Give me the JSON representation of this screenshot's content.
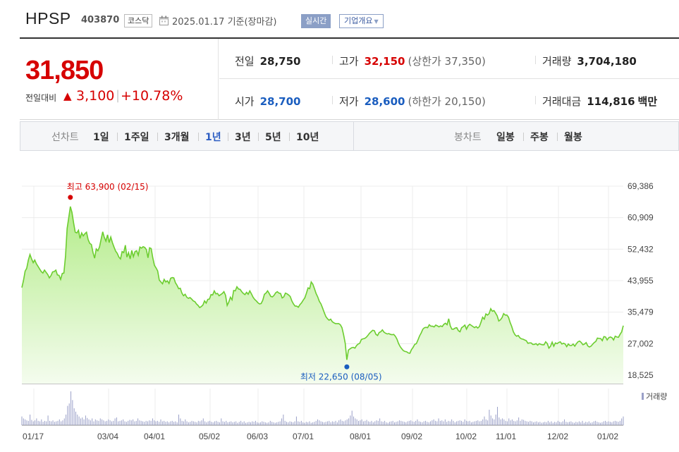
{
  "header": {
    "name": "HPSP",
    "code": "403870",
    "market": "코스닥",
    "date_text": "2025.01.17 기준(장마감)",
    "realtime_label": "실시간",
    "company_label": "기업개요"
  },
  "price": {
    "current": "31,850",
    "change_label": "전일대비",
    "change_arrow": "▲",
    "change_amount": "3,100",
    "change_rate": "+10.78%"
  },
  "stats": {
    "prev_close_label": "전일",
    "prev_close": "28,750",
    "high_label": "고가",
    "high": "32,150",
    "upper_limit_text": "(상한가 37,350)",
    "volume_label": "거래량",
    "volume": "3,704,180",
    "open_label": "시가",
    "open": "28,700",
    "low_label": "저가",
    "low": "28,600",
    "lower_limit_text": "(하한가 20,150)",
    "amount_label": "거래대금",
    "amount": "114,816",
    "amount_unit": "백만"
  },
  "period_bar": {
    "line_label": "선차트",
    "periods": [
      "1일",
      "1주일",
      "3개월",
      "1년",
      "3년",
      "5년",
      "10년"
    ],
    "active_period": "1년",
    "candle_label": "봉차트",
    "candles": [
      "일봉",
      "주봉",
      "월봉"
    ]
  },
  "chart_data": {
    "type": "area",
    "colors": {
      "line": "#6ccd2f",
      "fill_top": "#b4ec8a",
      "fill_bottom": "#f4fcee",
      "volume": "#9aa0c8",
      "high": "#d60000",
      "low": "#1a5dbf"
    },
    "y_ticks": [
      "69,386",
      "60,909",
      "52,432",
      "43,955",
      "35,479",
      "27,002",
      "18,525"
    ],
    "ylim": [
      18525,
      69386
    ],
    "x_tick_labels": [
      "01/17",
      "03/04",
      "04/01",
      "05/02",
      "06/03",
      "07/01",
      "08/01",
      "09/02",
      "10/02",
      "11/01",
      "12/02",
      "01/02"
    ],
    "annotations": {
      "high_text": "최고 63,900 (02/15)",
      "low_text": "최저 22,650 (08/05)"
    },
    "volume_legend": "거래량",
    "series": [
      {
        "values": [
          42100,
          44000,
          46500,
          47300,
          49500,
          51000,
          49800,
          48800,
          49500,
          48500,
          47800,
          47100,
          46400,
          46000,
          46800,
          46200,
          45600,
          44700,
          45300,
          46300,
          46400,
          46800,
          45500,
          45400,
          44300,
          45900,
          46000,
          50500,
          58000,
          60900,
          63900,
          62300,
          59500,
          57000,
          56800,
          57500,
          55300,
          56800,
          56000,
          56600,
          57000,
          55000,
          54000,
          53700,
          51500,
          50000,
          52500,
          52000,
          53000,
          55100,
          57100,
          55600,
          54600,
          56300,
          54200,
          55700,
          54200,
          53000,
          51900,
          51300,
          50300,
          49800,
          51800,
          51500,
          53500,
          50300,
          51500,
          49800,
          52100,
          50400,
          51800,
          52000,
          50800,
          53000,
          52700,
          53100,
          52900,
          52300,
          50100,
          52800,
          52600,
          50100,
          48100,
          47400,
          46600,
          44100,
          43600,
          43100,
          44300,
          43600,
          43900,
          43200,
          44600,
          44800,
          44700,
          43400,
          42700,
          41800,
          41900,
          40600,
          39900,
          40300,
          39500,
          39200,
          39400,
          39000,
          38500,
          38300,
          37700,
          37300,
          36700,
          37000,
          37400,
          38500,
          37900,
          38900,
          39000,
          40200,
          40100,
          41200,
          40400,
          40500,
          39900,
          40200,
          40500,
          41000,
          40000,
          37300,
          38200,
          39500,
          38800,
          41300,
          41200,
          42300,
          41700,
          41600,
          41000,
          40500,
          40200,
          40800,
          40300,
          41200,
          40400,
          39500,
          38900,
          38500,
          38000,
          37700,
          37800,
          38700,
          40300,
          40600,
          41200,
          40500,
          39700,
          39600,
          40000,
          40700,
          41000,
          40600,
          40500,
          39300,
          39600,
          40600,
          40400,
          40100,
          39700,
          38500,
          37700,
          37100,
          37100,
          36800,
          37500,
          38000,
          38700,
          39300,
          40600,
          42000,
          41800,
          43600,
          43000,
          41800,
          40500,
          39600,
          38400,
          37700,
          36600,
          35400,
          34300,
          33700,
          33300,
          33600,
          32900,
          32600,
          32400,
          32400,
          32400,
          32100,
          31300,
          29400,
          27100,
          22650,
          25300,
          25600,
          25900,
          26000,
          25800,
          26500,
          26900,
          27100,
          28100,
          28300,
          28400,
          28700,
          29200,
          29800,
          30200,
          30600,
          30500,
          29500,
          29200,
          30000,
          30200,
          30700,
          30100,
          29800,
          29600,
          29700,
          29500,
          29400,
          29500,
          29000,
          28200,
          27000,
          26200,
          25600,
          25100,
          24900,
          24800,
          24500,
          24400,
          25400,
          26000,
          26800,
          27000,
          28000,
          29100,
          29900,
          30900,
          31300,
          31400,
          31300,
          32100,
          31700,
          31700,
          31500,
          32000,
          31800,
          31500,
          31800,
          31600,
          32200,
          32500,
          32100,
          33700,
          31800,
          30900,
          30900,
          31200,
          31300,
          30500,
          30200,
          31300,
          31600,
          32000,
          30900,
          31800,
          32200,
          31900,
          31600,
          31300,
          31600,
          31200,
          31600,
          32800,
          34100,
          33600,
          35000,
          34700,
          35100,
          36400,
          35700,
          35900,
          35200,
          34500,
          33100,
          33400,
          34000,
          35100,
          34700,
          34700,
          34100,
          32700,
          31600,
          30200,
          29400,
          29000,
          29200,
          28600,
          28300,
          28200,
          28000,
          27800,
          27100,
          27200,
          27200,
          26800,
          26800,
          27000,
          26600,
          27000,
          26800,
          26700,
          26700,
          27500,
          27000,
          25800,
          26300,
          27400,
          26300,
          27200,
          27000,
          27300,
          27500,
          26900,
          27100,
          26900,
          26200,
          26900,
          26500,
          26500,
          26900,
          26300,
          27000,
          27500,
          27700,
          27300,
          26700,
          26900,
          27300,
          26400,
          26100,
          26300,
          26800,
          27300,
          27600,
          28500,
          28400,
          28400,
          27800,
          28900,
          28800,
          28000,
          28600,
          28800,
          28600,
          28000,
          29000,
          28800,
          28700,
          29500,
          30200,
          31850
        ]
      }
    ],
    "high": {
      "value": 63900,
      "date": "02/15"
    },
    "low": {
      "value": 22650,
      "date": "08/05"
    },
    "volume_values": [
      18,
      14,
      12,
      10,
      9,
      22,
      11,
      8,
      10,
      14,
      9,
      8,
      12,
      7,
      9,
      8,
      20,
      9,
      8,
      10,
      7,
      8,
      9,
      12,
      8,
      10,
      14,
      22,
      40,
      45,
      70,
      52,
      35,
      28,
      22,
      18,
      14,
      16,
      12,
      20,
      15,
      12,
      10,
      14,
      8,
      12,
      10,
      9,
      14,
      12,
      10,
      8,
      9,
      12,
      10,
      8,
      9,
      14,
      16,
      8,
      9,
      10,
      12,
      8,
      7,
      9,
      11,
      10,
      12,
      8,
      9,
      14,
      10,
      9,
      8,
      7,
      9,
      8,
      10,
      9,
      14,
      10,
      8,
      9,
      7,
      12,
      8,
      9,
      7,
      8,
      6,
      8,
      9,
      7,
      8,
      6,
      22,
      14,
      9,
      8,
      12,
      8,
      6,
      7,
      9,
      8,
      7,
      6,
      9,
      8,
      10,
      14,
      8,
      6,
      8,
      9,
      7,
      6,
      8,
      9,
      7,
      6,
      14,
      8,
      7,
      9,
      6,
      7,
      8,
      6,
      7,
      8,
      5,
      7,
      9,
      6,
      8,
      5,
      6,
      7,
      6,
      8,
      7,
      9,
      6,
      5,
      6,
      8,
      7,
      6,
      5,
      6,
      9,
      7,
      6,
      5,
      6,
      7,
      8,
      14,
      22,
      9,
      7,
      6,
      8,
      7,
      6,
      8,
      18,
      8,
      7,
      9,
      6,
      5,
      7,
      6,
      8,
      5,
      6,
      7,
      9,
      12,
      10,
      8,
      7,
      6,
      7,
      8,
      9,
      6,
      8,
      7,
      9,
      6,
      10,
      12,
      9,
      8,
      10,
      12,
      14,
      20,
      30,
      18,
      14,
      12,
      9,
      10,
      12,
      8,
      9,
      11,
      8,
      7,
      9,
      6,
      8,
      10,
      9,
      14,
      8,
      7,
      9,
      6,
      5,
      7,
      8,
      9,
      6,
      7,
      8,
      10,
      9,
      8,
      7,
      6,
      8,
      9,
      10,
      8,
      7,
      9,
      12,
      8,
      7,
      6,
      8,
      9,
      7,
      6,
      8,
      10,
      12,
      9,
      8,
      14,
      9,
      10,
      8,
      12,
      7,
      9,
      8,
      12,
      9,
      6,
      8,
      9,
      10,
      9,
      7,
      12,
      9,
      8,
      9,
      6,
      7,
      8,
      9,
      10,
      8,
      9,
      12,
      18,
      12,
      10,
      32,
      20,
      14,
      12,
      22,
      38,
      16,
      12,
      14,
      12,
      9,
      8,
      14,
      10,
      12,
      9,
      8,
      10,
      16,
      9,
      12,
      11,
      9,
      8,
      7,
      9,
      8,
      6,
      7,
      8,
      6,
      7,
      5,
      6,
      7,
      6,
      9,
      6,
      8,
      5,
      7,
      6,
      9,
      7,
      6,
      8,
      12,
      7,
      6,
      7,
      8,
      6,
      5,
      7,
      6,
      8,
      6,
      9,
      5,
      7,
      6,
      8,
      5,
      6,
      8,
      9,
      7,
      6,
      5,
      6,
      8,
      9,
      7,
      8,
      7,
      6,
      8,
      9,
      8,
      7,
      9,
      14,
      18
    ]
  }
}
